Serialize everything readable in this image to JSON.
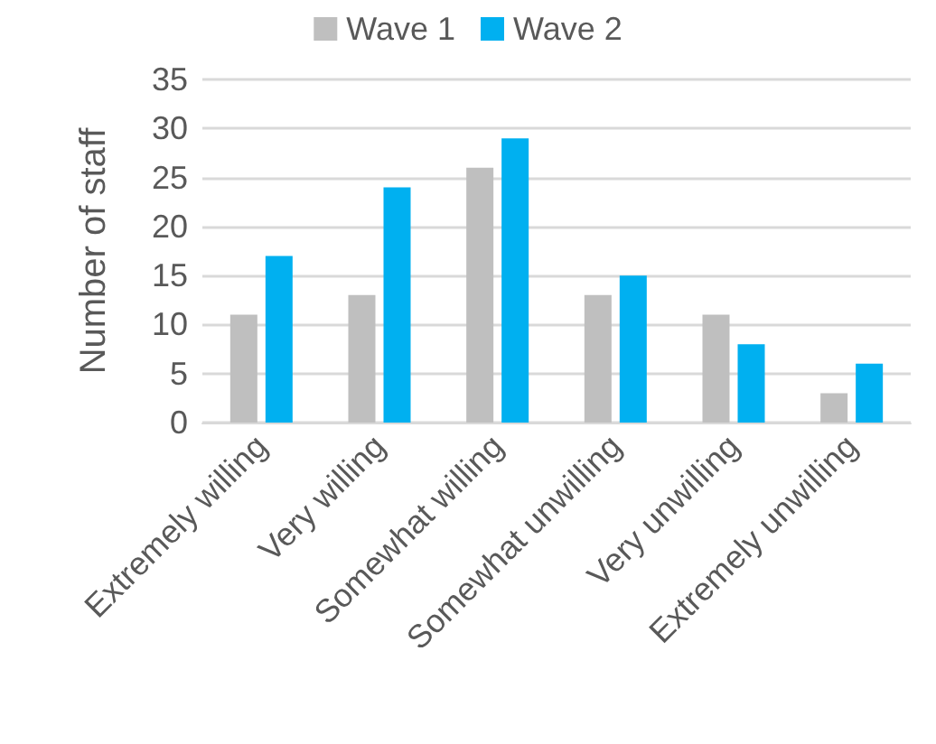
{
  "chart_data": {
    "type": "bar",
    "ylabel": "Number of staff",
    "categories": [
      "Extremely willing",
      "Very willing",
      "Somewhat willing",
      "Somewhat unwilling",
      "Very unwilling",
      "Extremely unwilling"
    ],
    "series": [
      {
        "name": "Wave 1",
        "color": "#bfbfbf",
        "values": [
          11,
          13,
          26,
          13,
          11,
          3
        ]
      },
      {
        "name": "Wave 2",
        "color": "#00b0f0",
        "values": [
          17,
          24,
          29,
          15,
          8,
          6
        ]
      }
    ],
    "ylim": [
      0,
      35
    ],
    "yticks": [
      0,
      5,
      10,
      15,
      20,
      25,
      30,
      35
    ],
    "grid": "y",
    "legend": "top"
  }
}
